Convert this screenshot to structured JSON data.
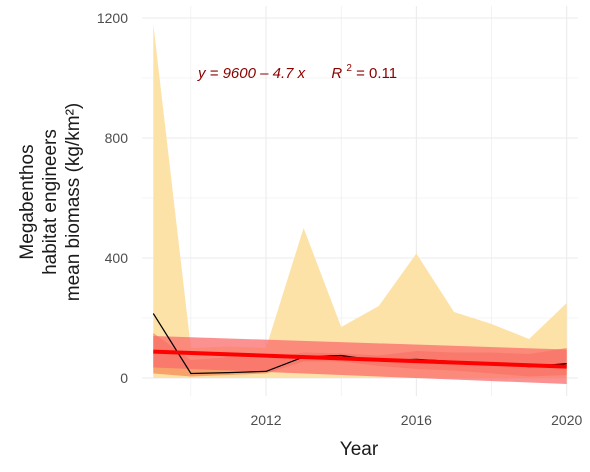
{
  "chart_data": {
    "type": "line",
    "xlabel": "Year",
    "ylabel_lines": [
      "Megabenthos",
      "habitat engineers",
      "mean biomass (kg/km²)"
    ],
    "xlim": [
      2008.7,
      2020.3
    ],
    "ylim": [
      -60,
      1240
    ],
    "x_ticks": [
      2012,
      2016,
      2020
    ],
    "y_ticks": [
      0,
      400,
      800,
      1200
    ],
    "grid": true,
    "annotation": {
      "equation": "y = 9600 – 4.7 x",
      "r2_label": "R",
      "r2_superscript": "2",
      "r2_value": " = 0.11",
      "color": "#8b0000"
    },
    "colors": {
      "ribbon_outer": "#fde2a8",
      "ribbon_inner": "#f7a26b",
      "trend_band": "#f96c6c",
      "trend_line": "#ff0000",
      "mean_line": "#000000",
      "grid": "#ebebeb"
    },
    "series": [
      {
        "role": "mean",
        "x": [
          2009,
          2010,
          2011,
          2012,
          2013,
          2014,
          2015,
          2016,
          2017,
          2018,
          2019,
          2020
        ],
        "y": [
          215,
          15,
          18,
          22,
          70,
          75,
          58,
          62,
          55,
          48,
          38,
          48
        ]
      },
      {
        "role": "outer_band",
        "x": [
          2009,
          2010,
          2011,
          2012,
          2013,
          2014,
          2015,
          2016,
          2017,
          2018,
          2019,
          2020
        ],
        "upper": [
          1180,
          100,
          105,
          100,
          500,
          170,
          240,
          415,
          220,
          180,
          130,
          250
        ],
        "lower": [
          0,
          0,
          0,
          0,
          0,
          0,
          0,
          0,
          0,
          0,
          0,
          0
        ]
      },
      {
        "role": "inner_band",
        "x": [
          2009,
          2010,
          2011,
          2012,
          2013,
          2014,
          2015,
          2016,
          2017,
          2018,
          2019,
          2020
        ],
        "upper": [
          150,
          60,
          70,
          65,
          85,
          82,
          75,
          90,
          85,
          85,
          80,
          100
        ],
        "lower": [
          15,
          5,
          10,
          15,
          55,
          55,
          40,
          30,
          25,
          15,
          5,
          10
        ]
      },
      {
        "role": "trend",
        "x": [
          2009,
          2020
        ],
        "y": [
          88,
          38
        ]
      },
      {
        "role": "trend_ci",
        "x": [
          2009,
          2020
        ],
        "upper": [
          140,
          95
        ],
        "lower": [
          35,
          -20
        ]
      }
    ]
  }
}
